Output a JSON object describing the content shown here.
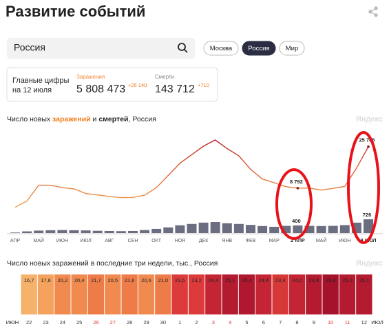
{
  "header": {
    "title": "Развитие событий"
  },
  "search": {
    "value": "Россия"
  },
  "tabs": [
    {
      "label": "Москва",
      "active": false
    },
    {
      "label": "Россия",
      "active": true
    },
    {
      "label": "Мир",
      "active": false
    }
  ],
  "summary": {
    "lines": [
      "Главные цифры",
      "на 12 июля"
    ],
    "infections": {
      "label": "Заражения",
      "value": "5 808 473",
      "delta": "+25 140"
    },
    "deaths": {
      "label": "Смерти",
      "value": "143 712",
      "delta": "+710"
    }
  },
  "chart_data": [
    {
      "type": "combo",
      "title": [
        "Число новых ",
        "заражений",
        " и ",
        "смертей",
        ", Россия"
      ],
      "watermark": "Яндекс",
      "categories": [
        "АПР",
        null,
        "МАЙ",
        null,
        "ИЮН",
        null,
        "ИЮЛ",
        null,
        "АВГ",
        null,
        "СЕН",
        null,
        "ОКТ",
        null,
        "НОЯ",
        null,
        "ДЕК",
        null,
        "ЯНВ",
        null,
        "ФЕВ",
        null,
        "МАР",
        null,
        "2 АПР",
        null,
        "МАЙ",
        null,
        "ИЮН",
        null,
        "9 ИЮЛ"
      ],
      "series": [
        {
          "name": "заражений",
          "type": "line",
          "color": "#f08a3a",
          "values": [
            1000,
            3500,
            10000,
            10000,
            9000,
            8500,
            6600,
            6000,
            5400,
            4900,
            5000,
            5900,
            9000,
            14000,
            19000,
            22500,
            26000,
            28500,
            25000,
            22000,
            16500,
            12500,
            11000,
            9400,
            8792,
            8800,
            8000,
            8700,
            9500,
            17000,
            25766
          ],
          "value_labels": [
            null,
            null,
            null,
            null,
            null,
            null,
            null,
            null,
            null,
            null,
            null,
            null,
            null,
            null,
            null,
            null,
            null,
            null,
            null,
            null,
            null,
            null,
            null,
            null,
            "8 792",
            null,
            null,
            null,
            null,
            null,
            "25 766"
          ]
        },
        {
          "name": "смертей",
          "type": "bar",
          "color": "#6b6d80",
          "values": [
            30,
            90,
            130,
            150,
            160,
            150,
            140,
            120,
            110,
            100,
            110,
            160,
            220,
            300,
            410,
            480,
            550,
            580,
            520,
            480,
            430,
            370,
            330,
            380,
            400,
            380,
            370,
            380,
            420,
            550,
            726
          ],
          "value_labels": [
            null,
            null,
            null,
            null,
            null,
            null,
            null,
            null,
            null,
            null,
            null,
            null,
            null,
            null,
            null,
            null,
            null,
            null,
            null,
            null,
            null,
            null,
            null,
            null,
            "400",
            null,
            null,
            null,
            null,
            null,
            "726"
          ]
        }
      ]
    },
    {
      "type": "heatmap",
      "title": "Число новых заражений в последние три недели, тыс., Россия",
      "watermark": "Яндекс",
      "x_start_label": "ИЮН",
      "x_end_label": "ИЮЛ",
      "categories": [
        "22",
        "23",
        "24",
        "25",
        "26",
        "27",
        "28",
        "29",
        "30",
        "1",
        "2",
        "3",
        "4",
        "5",
        "6",
        "7",
        "8",
        "9",
        "10",
        "11",
        "12"
      ],
      "category_colors": [
        "#333",
        "#333",
        "#333",
        "#333",
        "#e0312b",
        "#e0312b",
        "#333",
        "#333",
        "#333",
        "#333",
        "#333",
        "#e0312b",
        "#e0312b",
        "#333",
        "#333",
        "#333",
        "#333",
        "#333",
        "#e0312b",
        "#e0312b",
        "#333"
      ],
      "values": [
        16.7,
        17.6,
        20.2,
        20.4,
        21.7,
        20.5,
        21.6,
        20.6,
        21.0,
        23.5,
        23.2,
        24.4,
        25.1,
        25.4,
        24.4,
        23.4,
        24.0,
        24.8,
        25.8,
        25.0,
        25.1
      ],
      "value_labels": [
        "16,7",
        "17,6",
        "20,2",
        "20,4",
        "21,7",
        "20,5",
        "21,6",
        "20,6",
        "21,0",
        "23,5",
        "23,2",
        "24,4",
        "25,1",
        "25,4",
        "24,4",
        "23,4",
        "24,0",
        "24,8",
        "25,8",
        "25,0",
        "25,1"
      ],
      "colors": [
        "#f6b26b",
        "#f4a25d",
        "#f08a4f",
        "#f08a4f",
        "#ee7c48",
        "#f08a4f",
        "#ee7c48",
        "#f08a4f",
        "#ee7c48",
        "#dd3b3b",
        "#dd3b3b",
        "#c42535",
        "#b51b30",
        "#b01830",
        "#c42535",
        "#d63737",
        "#c42535",
        "#b51b30",
        "#a5122c",
        "#b51b30",
        "#b51b30"
      ]
    }
  ]
}
